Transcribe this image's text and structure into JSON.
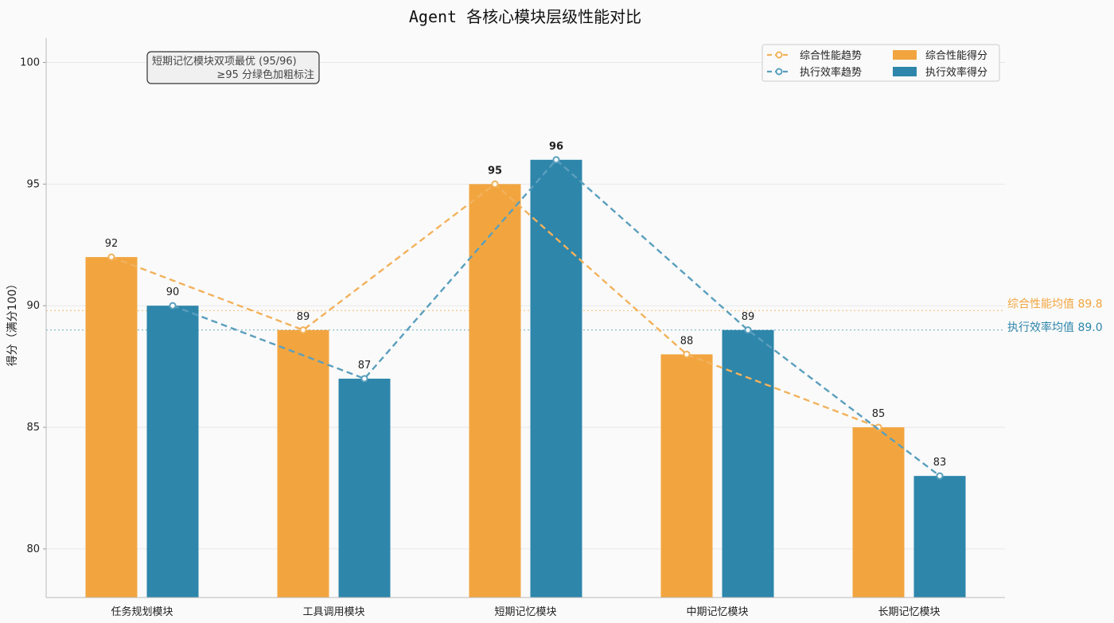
{
  "chart_data": {
    "type": "bar",
    "title": "Agent 各核心模块层级性能对比",
    "xlabel": "",
    "ylabel": "得分（满分100）",
    "ylim": [
      78,
      101
    ],
    "yticks": [
      80,
      85,
      90,
      95,
      100
    ],
    "grid": true,
    "legend_placement": "top-right",
    "categories": [
      "任务规划模块",
      "工具调用模块",
      "短期记忆模块",
      "中期记忆模块",
      "长期记忆模块"
    ],
    "series": [
      {
        "name": "综合性能得分",
        "type": "bar",
        "color": "#f2a53f",
        "values": [
          92,
          89,
          95,
          88,
          85
        ]
      },
      {
        "name": "执行效率得分",
        "type": "bar",
        "color": "#2e86ab",
        "values": [
          90,
          87,
          96,
          89,
          83
        ]
      }
    ],
    "trend_lines": [
      {
        "name": "综合性能趋势",
        "color": "#f2b25c",
        "values": [
          92,
          89,
          95,
          88,
          85
        ]
      },
      {
        "name": "执行效率趋势",
        "color": "#5a9fbd",
        "values": [
          90,
          87,
          96,
          89,
          83
        ]
      }
    ],
    "mean_lines": [
      {
        "label": "综合性能均值 89.8",
        "value": 89.8,
        "color": "#f2a53f"
      },
      {
        "label": "执行效率均值 89.0",
        "value": 89.0,
        "color": "#2e86ab"
      }
    ],
    "highlight_threshold": 95,
    "highlight_color": "#228b22",
    "annotation": {
      "line1": "短期记忆模块双项最优 (95/96)",
      "line2": "≥95 分绿色加粗标注"
    }
  }
}
